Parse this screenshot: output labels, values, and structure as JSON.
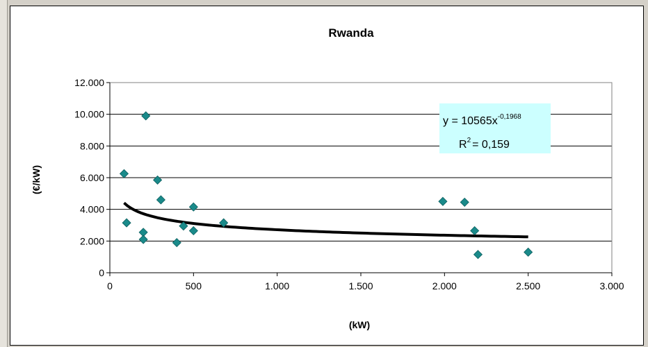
{
  "chart_data": {
    "type": "scatter",
    "title": "Rwanda",
    "xlabel": "(kW)",
    "ylabel": "(€/kW)",
    "xlim": [
      0,
      3000
    ],
    "ylim": [
      0,
      12000
    ],
    "x_ticks": [
      "0",
      "500",
      "1.000",
      "1.500",
      "2.000",
      "2.500",
      "3.000"
    ],
    "y_ticks": [
      "0",
      "2.000",
      "4.000",
      "6.000",
      "8.000",
      "10.000",
      "12.000"
    ],
    "grid": "horizontal",
    "marker_color": "#1a8a8a",
    "trend_color": "#000000",
    "points": [
      {
        "x": 85,
        "y": 6250
      },
      {
        "x": 100,
        "y": 3150
      },
      {
        "x": 200,
        "y": 2550
      },
      {
        "x": 200,
        "y": 2100
      },
      {
        "x": 215,
        "y": 9900
      },
      {
        "x": 285,
        "y": 5850
      },
      {
        "x": 305,
        "y": 4600
      },
      {
        "x": 400,
        "y": 1900
      },
      {
        "x": 440,
        "y": 2950
      },
      {
        "x": 500,
        "y": 4150
      },
      {
        "x": 500,
        "y": 2650
      },
      {
        "x": 680,
        "y": 3150
      },
      {
        "x": 1990,
        "y": 4500
      },
      {
        "x": 2120,
        "y": 4450
      },
      {
        "x": 2180,
        "y": 2650
      },
      {
        "x": 2200,
        "y": 1150
      },
      {
        "x": 2500,
        "y": 1300
      }
    ],
    "trendline": {
      "type": "power",
      "a": 10565,
      "b": -0.1968,
      "x_range": [
        85,
        2500
      ],
      "equation_text": "y = 10565x",
      "exponent_text": "-0,1968",
      "r2_label": "R",
      "r2_sup": "2",
      "r2_value_text": "= 0,159",
      "box_color": "#ccffff"
    }
  }
}
